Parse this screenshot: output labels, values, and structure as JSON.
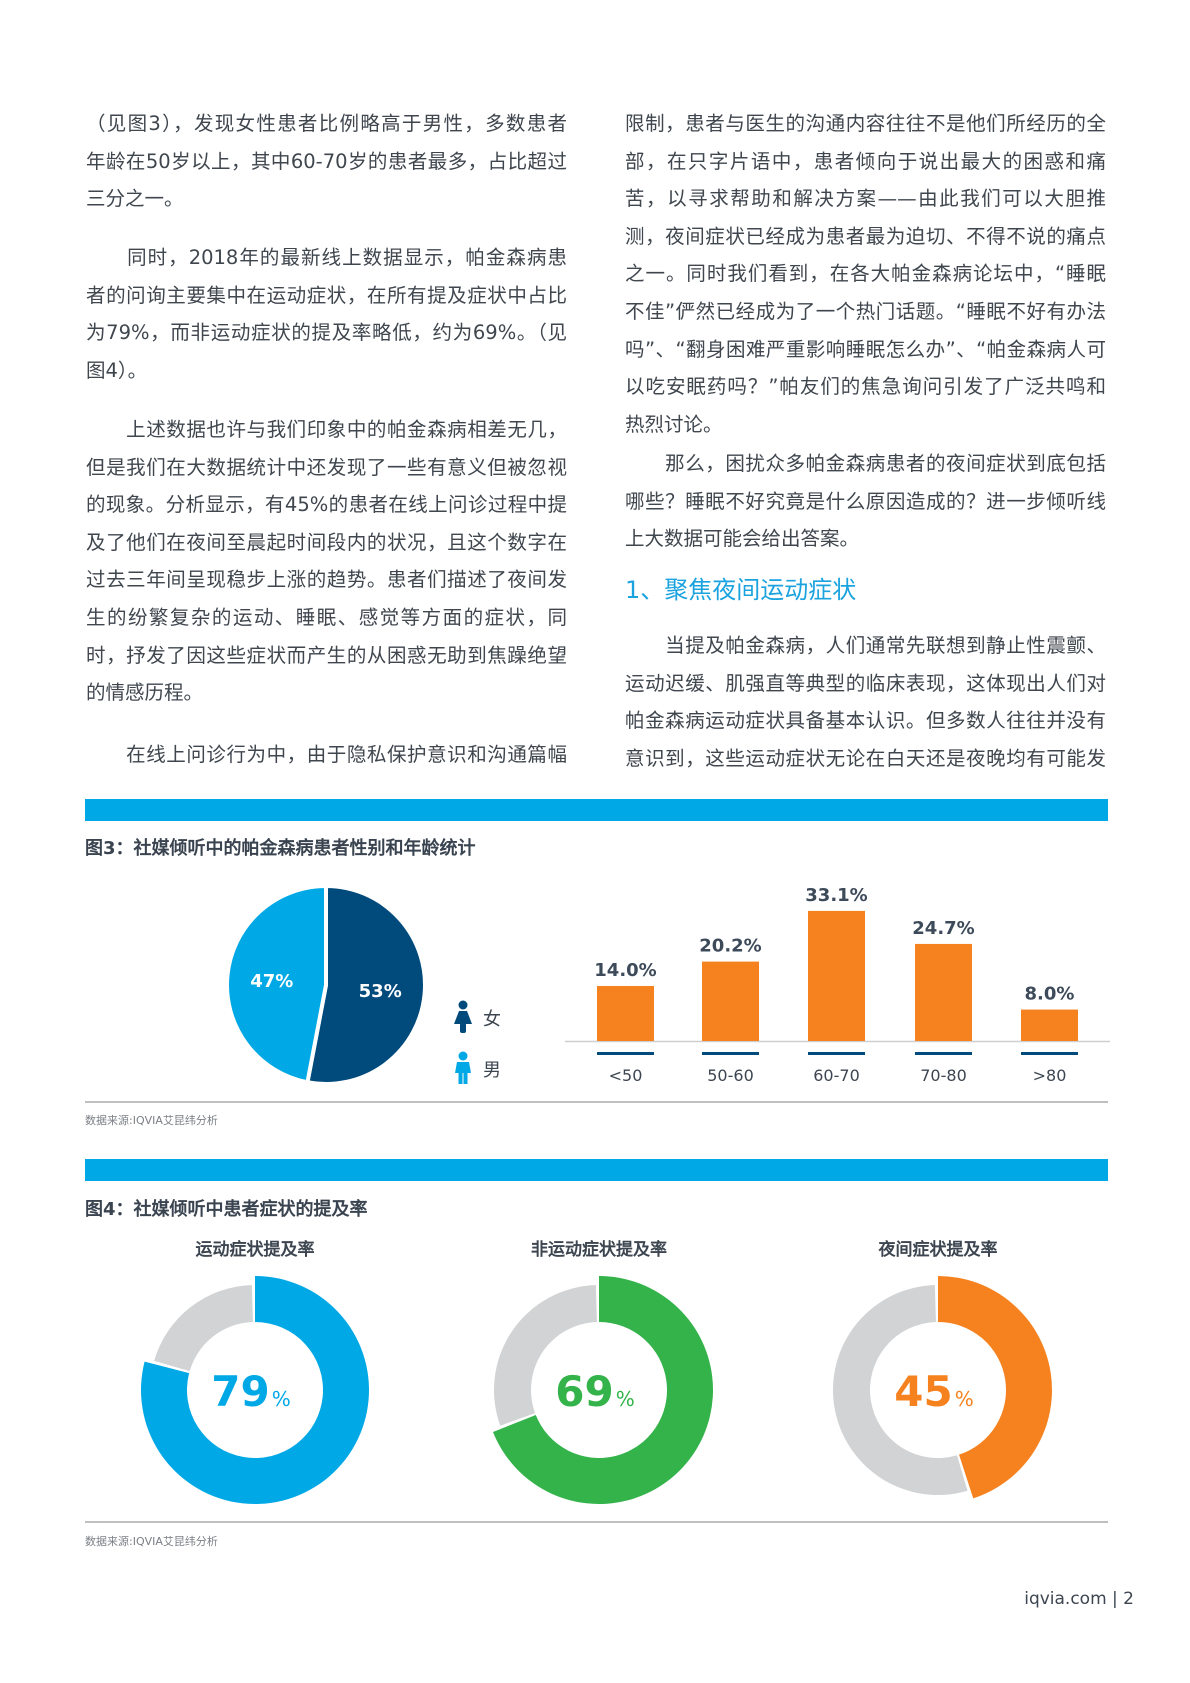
{
  "left_column": [
    {
      "lines": [
        "（见图3），发现女性患者比例略高于男性，多数患者",
        "年龄在50岁以上，其中60-70岁的患者最多，占比超过",
        "三分之一。"
      ]
    },
    {
      "lines": [
        "　　同时，2018年的最新线上数据显示，帕金森病患",
        "者的问询主要集中在运动症状，在所有提及症状中占比",
        "为79%，而非运动症状的提及率略低，约为69%。（见",
        "图4）。"
      ]
    },
    {
      "lines": [
        "　　上述数据也许与我们印象中的帕金森病相差无几，",
        "但是我们在大数据统计中还发现了一些有意义但被忽视",
        "的现象。分析显示，有45%的患者在线上问诊过程中提",
        "及了他们在夜间至晨起时间段内的状况，且这个数字在",
        "过去三年间呈现稳步上涨的趋势。患者们描述了夜间发",
        "生的纷繁复杂的运动、睡眠、感觉等方面的症状，同",
        "时，抒发了因这些症状而产生的从困惑无助到焦躁绝望",
        "的情感历程。"
      ]
    },
    {
      "lines": [
        "　　在线上问诊行为中，由于隐私保护意识和沟通篇幅"
      ],
      "continues": true
    }
  ],
  "right_column": [
    {
      "lines": [
        "限制，患者与医生的沟通内容往往不是他们所经历的全",
        "部，在只字片语中，患者倾向于说出最大的困惑和痛",
        "苦，以寻求帮助和解决方案——由此我们可以大胆推",
        "测，夜间症状已经成为患者最为迫切、不得不说的痛点",
        "之一。同时我们看到，在各大帕金森病论坛中，“睡眠",
        "不佳”俨然已经成为了一个热门话题。“睡眠不好有办法",
        "吗”、“翻身困难严重影响睡眠怎么办”、“帕金森病人可",
        "以吃安眠药吗？”帕友们的焦急询问引发了广泛共鸣和",
        "热烈讨论。"
      ]
    },
    {
      "lines": [
        "　　那么，困扰众多帕金森病患者的夜间症状到底包括",
        "哪些？睡眠不好究竟是什么原因造成的？进一步倾听线",
        "上大数据可能会给出答案。"
      ]
    },
    {
      "lines": [
        "　　当提及帕金森病，人们通常先联想到静止性震颤、",
        "运动迟缓、肌强直等典型的临床表现，这体现出人们对",
        "帕金森病运动症状具备基本认识。但多数人往往并没有",
        "意识到，这些运动症状无论在白天还是夜晚均有可能发"
      ],
      "continues": true
    }
  ],
  "section_heading": "1、聚焦夜间运动症状",
  "colors": {
    "band": "#00a9e6",
    "female": "#004a7c",
    "male": "#00a9e6",
    "bar": "#f5821f",
    "green": "#33b34a",
    "grey": "#d1d3d4"
  },
  "figure3": {
    "title": "图3：社媒倾听中的帕金森病患者性别和年龄统计",
    "source": "数据来源:IQVIA艾昆纬分析",
    "legend": [
      {
        "label": "女",
        "icon": "female-person-icon",
        "color": "#004a7c"
      },
      {
        "label": "男",
        "icon": "male-person-icon",
        "color": "#00a9e6"
      }
    ]
  },
  "figure4": {
    "title": "图4：社媒倾听中患者症状的提及率",
    "source": "数据来源:IQVIA艾昆纬分析"
  },
  "chart_data": [
    {
      "type": "pie",
      "slices": [
        {
          "label": "女",
          "value": 53,
          "display": "53%",
          "color": "#004a7c"
        },
        {
          "label": "男",
          "value": 47,
          "display": "47%",
          "color": "#00a9e6"
        }
      ]
    },
    {
      "type": "bar",
      "categories": [
        "<50",
        "50-60",
        "60-70",
        "70-80",
        ">80"
      ],
      "values": [
        14.0,
        20.2,
        33.1,
        24.7,
        8.0
      ],
      "labels": [
        "14.0%",
        "20.2%",
        "33.1%",
        "24.7%",
        "8.0%"
      ],
      "color": "#f5821f",
      "grid": false
    },
    {
      "type": "pie",
      "subtype": "donut",
      "charts": [
        {
          "title": "运动症状提及率",
          "value": 79,
          "number": "79",
          "unit": "%",
          "color": "#00a9e6"
        },
        {
          "title": "非运动症状提及率",
          "value": 69,
          "number": "69",
          "unit": "%",
          "color": "#33b34a"
        },
        {
          "title": "夜间症状提及率",
          "value": 45,
          "number": "45",
          "unit": "%",
          "color": "#f5821f"
        }
      ],
      "remainder_color": "#d1d3d4"
    }
  ],
  "footer": {
    "text": "iqvia.com | 2"
  }
}
